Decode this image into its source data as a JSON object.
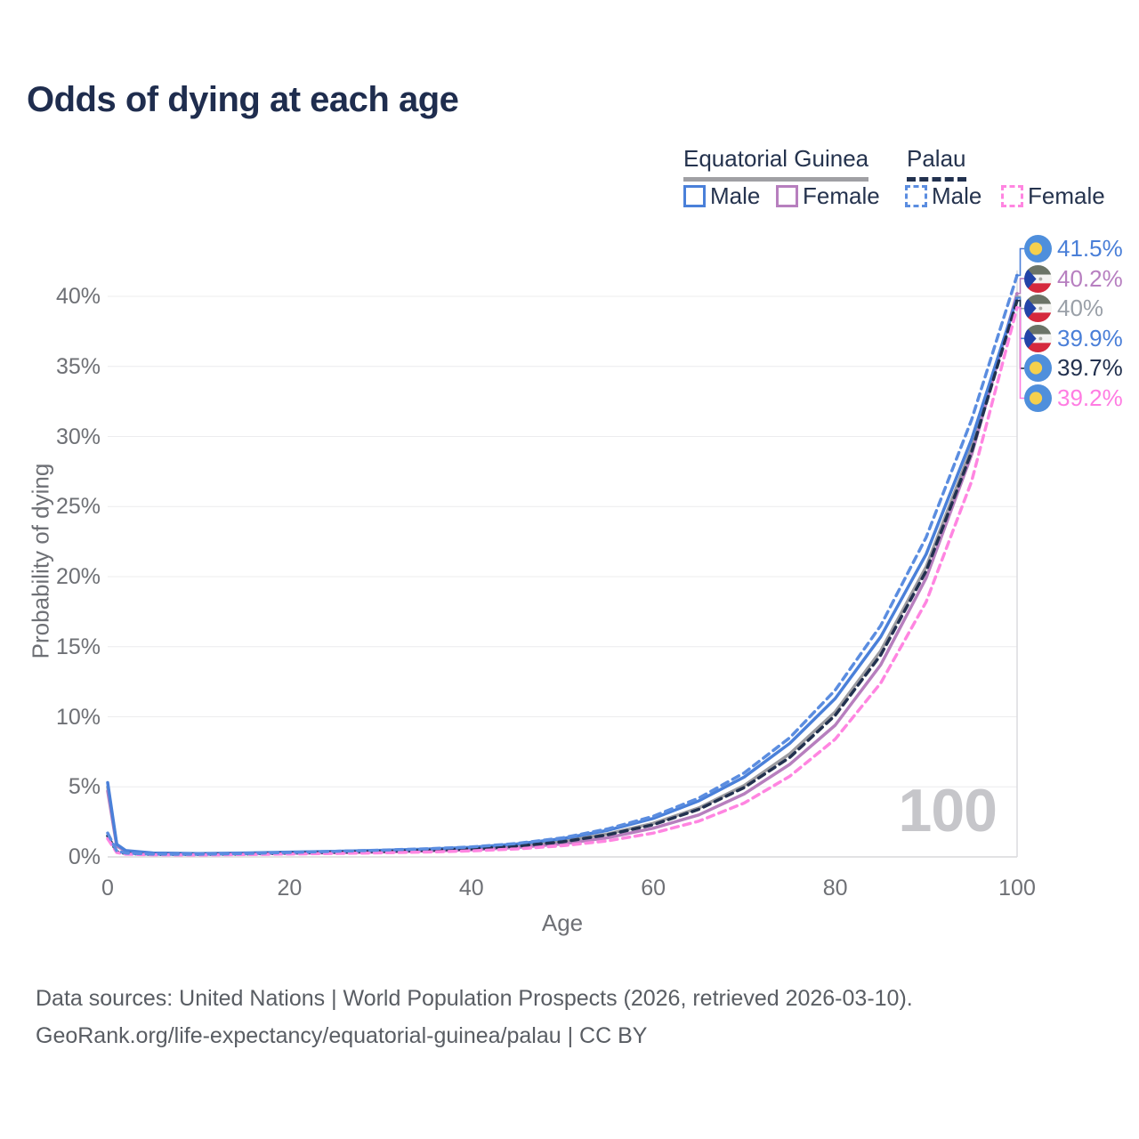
{
  "title": "Odds of dying at each age",
  "legend": {
    "group1_label": "Equatorial Guinea",
    "group2_label": "Palau",
    "eg_male_label": "Male",
    "eg_female_label": "Female",
    "palau_male_label": "Male",
    "palau_female_label": "Female"
  },
  "axes": {
    "x_title": "Age",
    "y_title": "Probability of dying"
  },
  "hovered_age_indicator": "100",
  "footer": {
    "line1": "Data sources: United Nations | World Population Prospects (2026, retrieved 2026-03-10).",
    "line2": "GeoRank.org/life-expectancy/equatorial-guinea/palau | CC BY"
  },
  "colors": {
    "title_text": "#1f2d4e",
    "legend_text": "#25334e",
    "axis_text": "#6e7075",
    "gridline": "#ececee",
    "axis_line": "#d8d8db",
    "crosshair": "#dcdcdf",
    "watermark": "#c6c6ca",
    "eg_male": "#4a80d9",
    "eg_female": "#b77fbe",
    "eg_average": "#9c9ca1",
    "palau_male": "#5b8de0",
    "palau_female": "#ff85e1",
    "palau_average": "#22314f"
  },
  "chart_data": {
    "type": "line",
    "title": "Odds of dying at each age",
    "xlabel": "Age",
    "ylabel": "Probability of dying",
    "xlim": [
      0,
      100
    ],
    "ylim": [
      0,
      43
    ],
    "x_ticks": [
      0,
      20,
      40,
      60,
      80,
      100
    ],
    "y_ticks_percent": [
      0,
      5,
      10,
      15,
      20,
      25,
      30,
      35,
      40
    ],
    "grid": "horizontal",
    "legend_position": "top-right",
    "hovered_age": 100,
    "x": [
      0,
      1,
      2,
      5,
      10,
      15,
      20,
      25,
      30,
      35,
      40,
      45,
      50,
      55,
      60,
      65,
      70,
      75,
      80,
      85,
      90,
      95,
      100
    ],
    "series": [
      {
        "name": "eg-average",
        "country": "Equatorial Guinea",
        "sex": "Both",
        "style": "solid",
        "color": "#9c9ca1",
        "label_color": "#9aa0a8",
        "flag": "equatorial-guinea",
        "end_label": "40%",
        "values": [
          5.0,
          0.84,
          0.42,
          0.26,
          0.22,
          0.25,
          0.3,
          0.35,
          0.41,
          0.49,
          0.6,
          0.8,
          1.12,
          1.64,
          2.4,
          3.5,
          5.1,
          7.35,
          10.35,
          14.7,
          20.7,
          29.2,
          40.0
        ]
      },
      {
        "name": "eg-female",
        "country": "Equatorial Guinea",
        "sex": "Female",
        "style": "solid",
        "color": "#b77fbe",
        "label_color": "#b77fc0",
        "flag": "equatorial-guinea",
        "end_label": "40.2%",
        "values": [
          4.7,
          0.78,
          0.4,
          0.25,
          0.2,
          0.22,
          0.26,
          0.3,
          0.35,
          0.42,
          0.51,
          0.67,
          0.93,
          1.37,
          2.05,
          3.0,
          4.5,
          6.6,
          9.4,
          13.7,
          19.9,
          28.7,
          40.2
        ]
      },
      {
        "name": "eg-male",
        "country": "Equatorial Guinea",
        "sex": "Male",
        "style": "solid",
        "color": "#4a80d9",
        "label_color": "#4a7fd8",
        "flag": "equatorial-guinea",
        "end_label": "39.9%",
        "values": [
          5.3,
          0.9,
          0.45,
          0.28,
          0.24,
          0.28,
          0.34,
          0.4,
          0.47,
          0.56,
          0.68,
          0.92,
          1.3,
          1.9,
          2.75,
          4.0,
          5.7,
          8.1,
          11.3,
          15.7,
          21.6,
          29.8,
          39.9
        ]
      },
      {
        "name": "palau-average",
        "country": "Palau",
        "sex": "Both",
        "style": "dashed",
        "color": "#22314f",
        "label_color": "#22304e",
        "flag": "palau",
        "end_label": "39.7%",
        "values": [
          1.5,
          0.37,
          0.24,
          0.18,
          0.17,
          0.21,
          0.27,
          0.33,
          0.39,
          0.47,
          0.57,
          0.77,
          1.08,
          1.58,
          2.3,
          3.4,
          4.95,
          7.1,
          10.1,
          14.4,
          20.4,
          28.9,
          39.7
        ]
      },
      {
        "name": "palau-female",
        "country": "Palau",
        "sex": "Female",
        "style": "dashed",
        "color": "#ff85e1",
        "label_color": "#ff7ce2",
        "flag": "palau",
        "end_label": "39.2%",
        "values": [
          1.3,
          0.32,
          0.2,
          0.15,
          0.14,
          0.17,
          0.21,
          0.25,
          0.29,
          0.35,
          0.43,
          0.57,
          0.8,
          1.15,
          1.7,
          2.55,
          3.85,
          5.75,
          8.4,
          12.4,
          18.2,
          26.8,
          39.2
        ]
      },
      {
        "name": "palau-male",
        "country": "Palau",
        "sex": "Male",
        "style": "dashed",
        "color": "#5b8de0",
        "label_color": "#4a7fd8",
        "flag": "palau",
        "end_label": "41.5%",
        "values": [
          1.7,
          0.42,
          0.27,
          0.2,
          0.19,
          0.24,
          0.32,
          0.4,
          0.48,
          0.58,
          0.71,
          0.96,
          1.36,
          2.0,
          2.9,
          4.2,
          6.0,
          8.5,
          11.9,
          16.5,
          22.8,
          31.2,
          41.5
        ]
      }
    ]
  }
}
